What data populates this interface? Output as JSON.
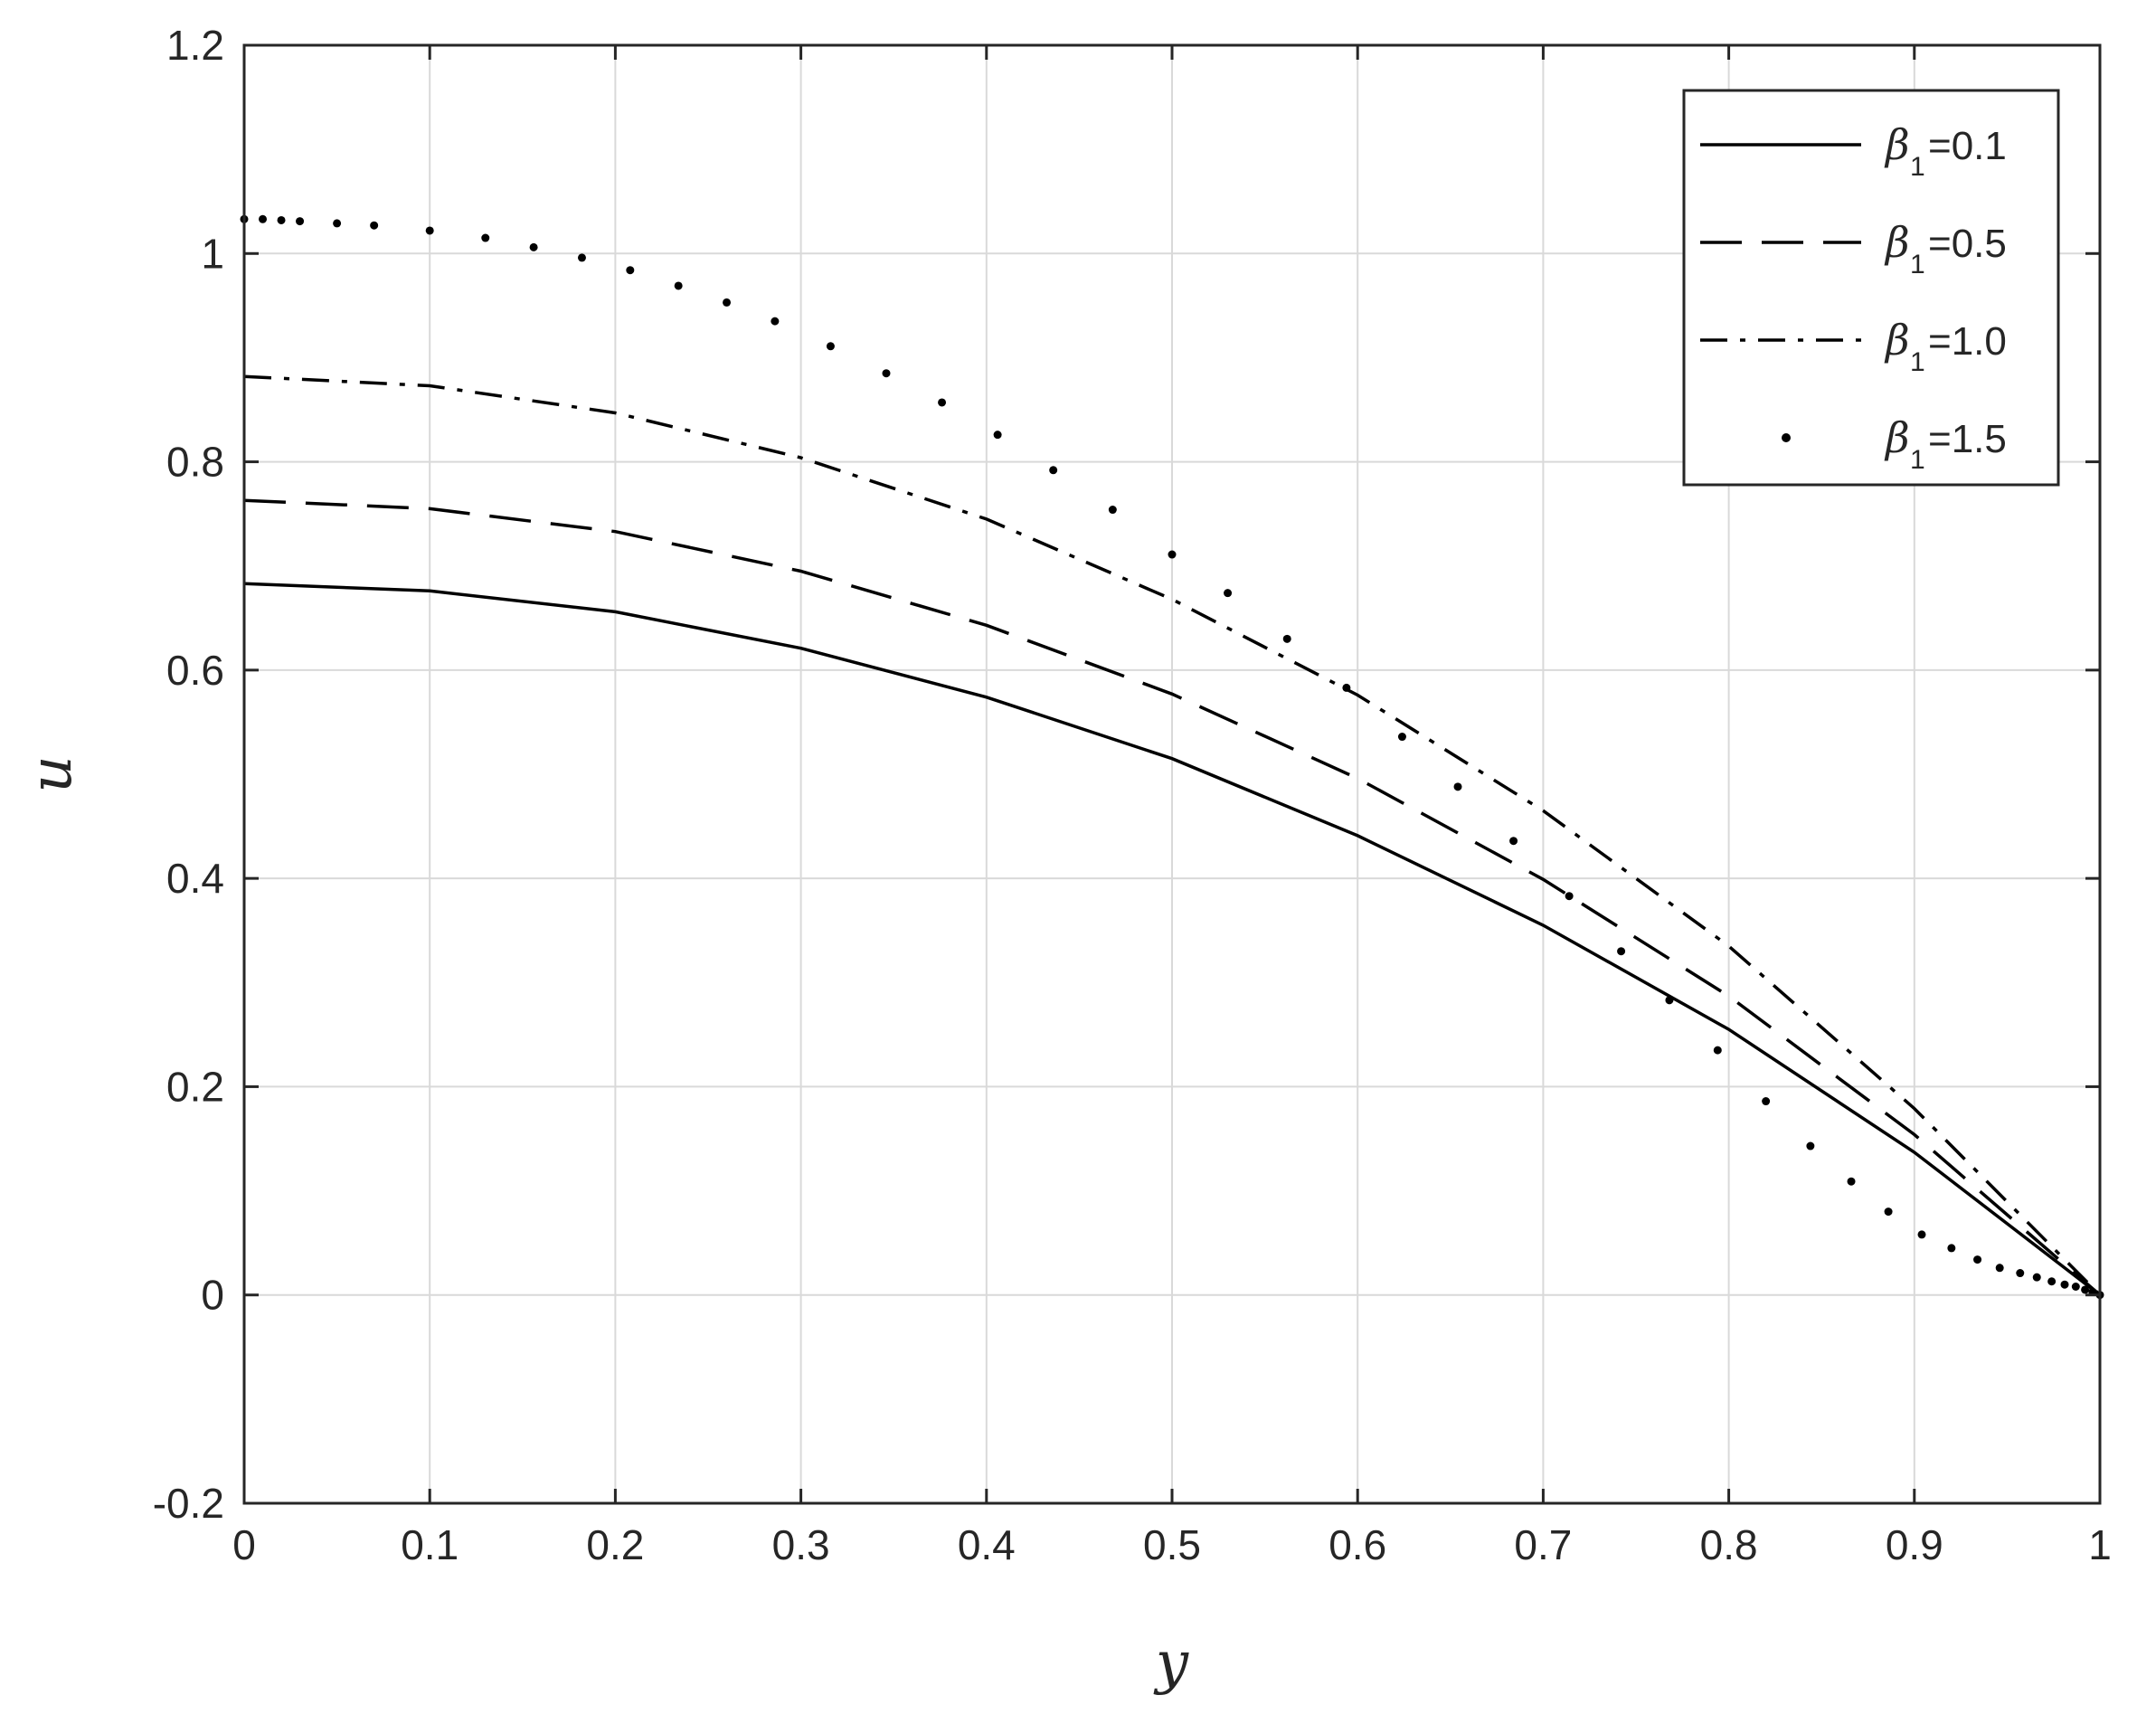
{
  "chart_data": {
    "type": "line",
    "title": "",
    "xlabel": "y",
    "ylabel": "u",
    "xlim": [
      0,
      1
    ],
    "ylim": [
      -0.2,
      1.2
    ],
    "x_ticks": [
      "0",
      "0.1",
      "0.2",
      "0.3",
      "0.4",
      "0.5",
      "0.6",
      "0.7",
      "0.8",
      "0.9",
      "1"
    ],
    "y_ticks": [
      "-0.2",
      "0",
      "0.2",
      "0.4",
      "0.6",
      "0.8",
      "1",
      "1.2"
    ],
    "grid": true,
    "legend_position": "top-right",
    "series": [
      {
        "name": "β1=0.1",
        "symbol": "β",
        "subscript": "1",
        "value_text": "=0.1",
        "style": "solid",
        "x": [
          0,
          0.1,
          0.2,
          0.3,
          0.4,
          0.5,
          0.6,
          0.7,
          0.8,
          0.9,
          1.0
        ],
        "y": [
          0.683,
          0.676,
          0.656,
          0.621,
          0.574,
          0.515,
          0.441,
          0.355,
          0.255,
          0.137,
          0.0
        ]
      },
      {
        "name": "β1=0.5",
        "symbol": "β",
        "subscript": "1",
        "value_text": "=0.5",
        "style": "dashed",
        "x": [
          0,
          0.1,
          0.2,
          0.3,
          0.4,
          0.5,
          0.6,
          0.7,
          0.8,
          0.9,
          1.0
        ],
        "y": [
          0.763,
          0.755,
          0.733,
          0.695,
          0.643,
          0.577,
          0.496,
          0.399,
          0.287,
          0.154,
          0.0
        ]
      },
      {
        "name": "β1=1.0",
        "symbol": "β",
        "subscript": "1",
        "value_text": "=1.0",
        "style": "dash-dot",
        "x": [
          0,
          0.1,
          0.2,
          0.3,
          0.4,
          0.5,
          0.6,
          0.7,
          0.8,
          0.9,
          1.0
        ],
        "y": [
          0.882,
          0.873,
          0.847,
          0.804,
          0.745,
          0.668,
          0.576,
          0.465,
          0.335,
          0.179,
          0.0
        ]
      },
      {
        "name": "β1=1.5",
        "symbol": "β",
        "subscript": "1",
        "value_text": "=1.5",
        "style": "dotted",
        "x": [
          0,
          0.01,
          0.02,
          0.03,
          0.05,
          0.07,
          0.1,
          0.13,
          0.156,
          0.182,
          0.208,
          0.234,
          0.26,
          0.286,
          0.316,
          0.346,
          0.376,
          0.406,
          0.436,
          0.468,
          0.5,
          0.53,
          0.562,
          0.594,
          0.624,
          0.654,
          0.684,
          0.714,
          0.742,
          0.768,
          0.794,
          0.82,
          0.844,
          0.866,
          0.886,
          0.904,
          0.92,
          0.934,
          0.946,
          0.957,
          0.966,
          0.974,
          0.981,
          0.987,
          0.992,
          0.996,
          1.0
        ],
        "y": [
          1.033,
          1.033,
          1.032,
          1.031,
          1.029,
          1.027,
          1.022,
          1.015,
          1.006,
          0.996,
          0.984,
          0.969,
          0.953,
          0.935,
          0.911,
          0.885,
          0.857,
          0.826,
          0.792,
          0.754,
          0.711,
          0.674,
          0.63,
          0.583,
          0.536,
          0.488,
          0.436,
          0.383,
          0.33,
          0.283,
          0.235,
          0.186,
          0.143,
          0.109,
          0.08,
          0.058,
          0.045,
          0.034,
          0.026,
          0.021,
          0.017,
          0.013,
          0.01,
          0.008,
          0.005,
          0.003,
          0.0
        ]
      }
    ]
  }
}
